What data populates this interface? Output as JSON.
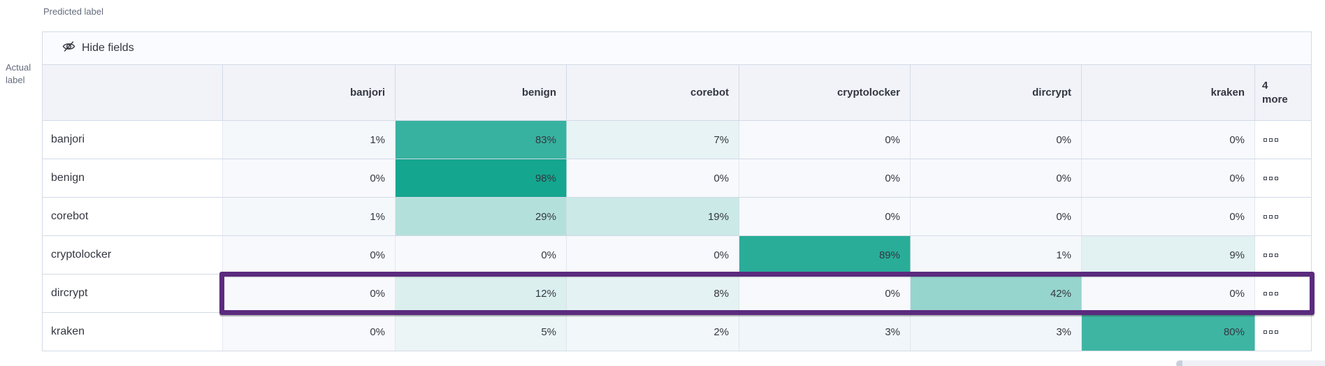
{
  "labels": {
    "predicted": "Predicted label",
    "actual_line1": "Actual",
    "actual_line2": "label"
  },
  "controls": {
    "hide_fields_label": "Hide fields"
  },
  "matrix": {
    "columns": [
      "banjori",
      "benign",
      "corebot",
      "cryptolocker",
      "dircrypt",
      "kraken"
    ],
    "more_header": {
      "count": "4",
      "label": "more"
    },
    "value_suffix": "%",
    "rows": [
      {
        "label": "banjori",
        "values": [
          1,
          83,
          7,
          0,
          0,
          0
        ],
        "highlighted": false
      },
      {
        "label": "benign",
        "values": [
          0,
          98,
          0,
          0,
          0,
          0
        ],
        "highlighted": false
      },
      {
        "label": "corebot",
        "values": [
          1,
          29,
          19,
          0,
          0,
          0
        ],
        "highlighted": false
      },
      {
        "label": "cryptolocker",
        "values": [
          0,
          0,
          0,
          89,
          1,
          9
        ],
        "highlighted": false
      },
      {
        "label": "dircrypt",
        "values": [
          0,
          12,
          8,
          0,
          42,
          0
        ],
        "highlighted": true
      },
      {
        "label": "kraken",
        "values": [
          0,
          5,
          2,
          3,
          3,
          80
        ],
        "highlighted": false
      }
    ]
  },
  "colors": {
    "heat_base": "#10a48d",
    "cell_zero_bg": "#f7f9fc",
    "header_bg": "#f1f3f9",
    "border": "#d3dae6",
    "text": "#343741",
    "secondary_text": "#646d7d",
    "highlight_purple": "#5b2b7e"
  }
}
